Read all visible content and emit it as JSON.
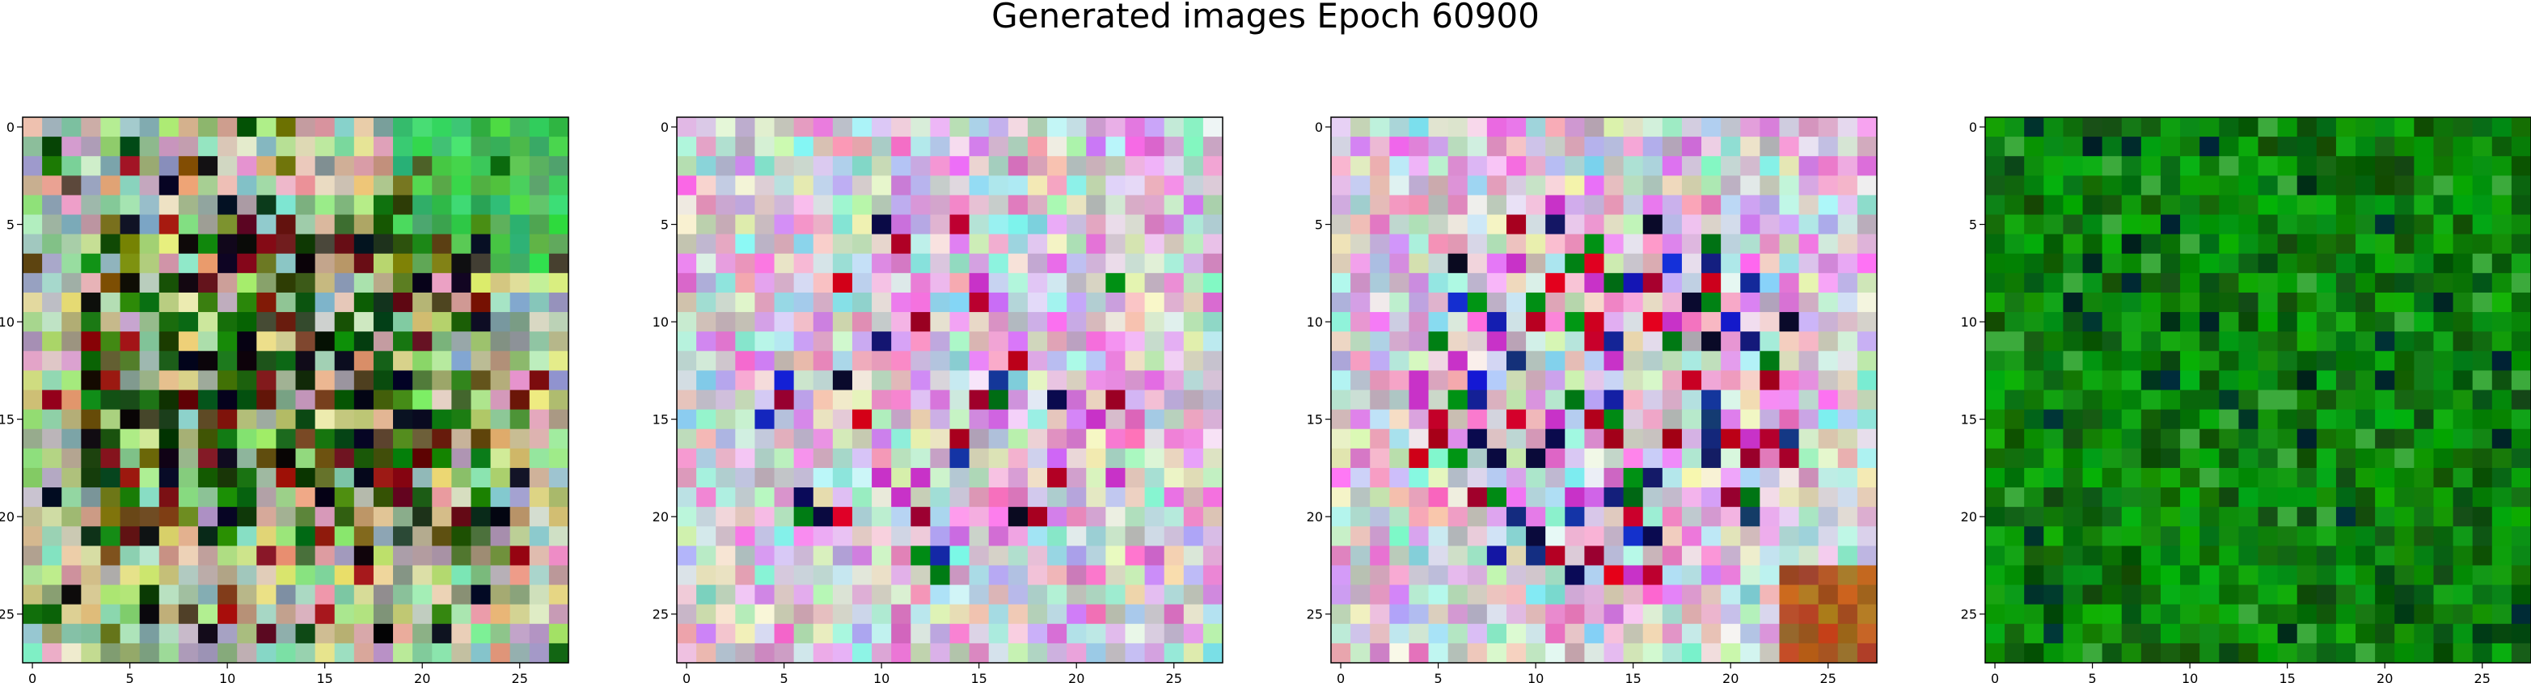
{
  "figure": {
    "title": "Generated images Epoch 60900"
  },
  "chart_data": [
    {
      "type": "heatmap",
      "rows": 28,
      "cols": 28,
      "palette": "mixed",
      "xlim": [
        -0.5,
        27.5
      ],
      "ylim": [
        27.5,
        -0.5
      ],
      "xticks": [
        0,
        5,
        10,
        15,
        20,
        25
      ],
      "yticks": [
        0,
        5,
        10,
        15,
        20,
        25
      ],
      "xtick_labels": [
        "0",
        "5",
        "10",
        "15",
        "20",
        "25"
      ],
      "ytick_labels": [
        "0",
        "5",
        "10",
        "15",
        "20",
        "25"
      ]
    },
    {
      "type": "heatmap",
      "rows": 28,
      "cols": 28,
      "palette": "pastel",
      "xlim": [
        -0.5,
        27.5
      ],
      "ylim": [
        27.5,
        -0.5
      ],
      "xticks": [
        0,
        5,
        10,
        15,
        20,
        25
      ],
      "yticks": [
        0,
        5,
        10,
        15,
        20,
        25
      ],
      "xtick_labels": [
        "0",
        "5",
        "10",
        "15",
        "20",
        "25"
      ],
      "ytick_labels": [
        "0",
        "5",
        "10",
        "15",
        "20",
        "25"
      ]
    },
    {
      "type": "heatmap",
      "rows": 28,
      "cols": 28,
      "palette": "pastel-dark",
      "xlim": [
        -0.5,
        27.5
      ],
      "ylim": [
        27.5,
        -0.5
      ],
      "xticks": [
        0,
        5,
        10,
        15,
        20,
        25
      ],
      "yticks": [
        0,
        5,
        10,
        15,
        20,
        25
      ],
      "xtick_labels": [
        "0",
        "5",
        "10",
        "15",
        "20",
        "25"
      ],
      "ytick_labels": [
        "0",
        "5",
        "10",
        "15",
        "20",
        "25"
      ]
    },
    {
      "type": "heatmap",
      "rows": 28,
      "cols": 28,
      "palette": "green",
      "xlim": [
        -0.5,
        27.5
      ],
      "ylim": [
        27.5,
        -0.5
      ],
      "xticks": [
        0,
        5,
        10,
        15,
        20,
        25
      ],
      "yticks": [
        0,
        5,
        10,
        15,
        20,
        25
      ],
      "xtick_labels": [
        "0",
        "5",
        "10",
        "15",
        "20",
        "25"
      ],
      "ytick_labels": [
        "0",
        "5",
        "10",
        "15",
        "20",
        "25"
      ]
    }
  ]
}
